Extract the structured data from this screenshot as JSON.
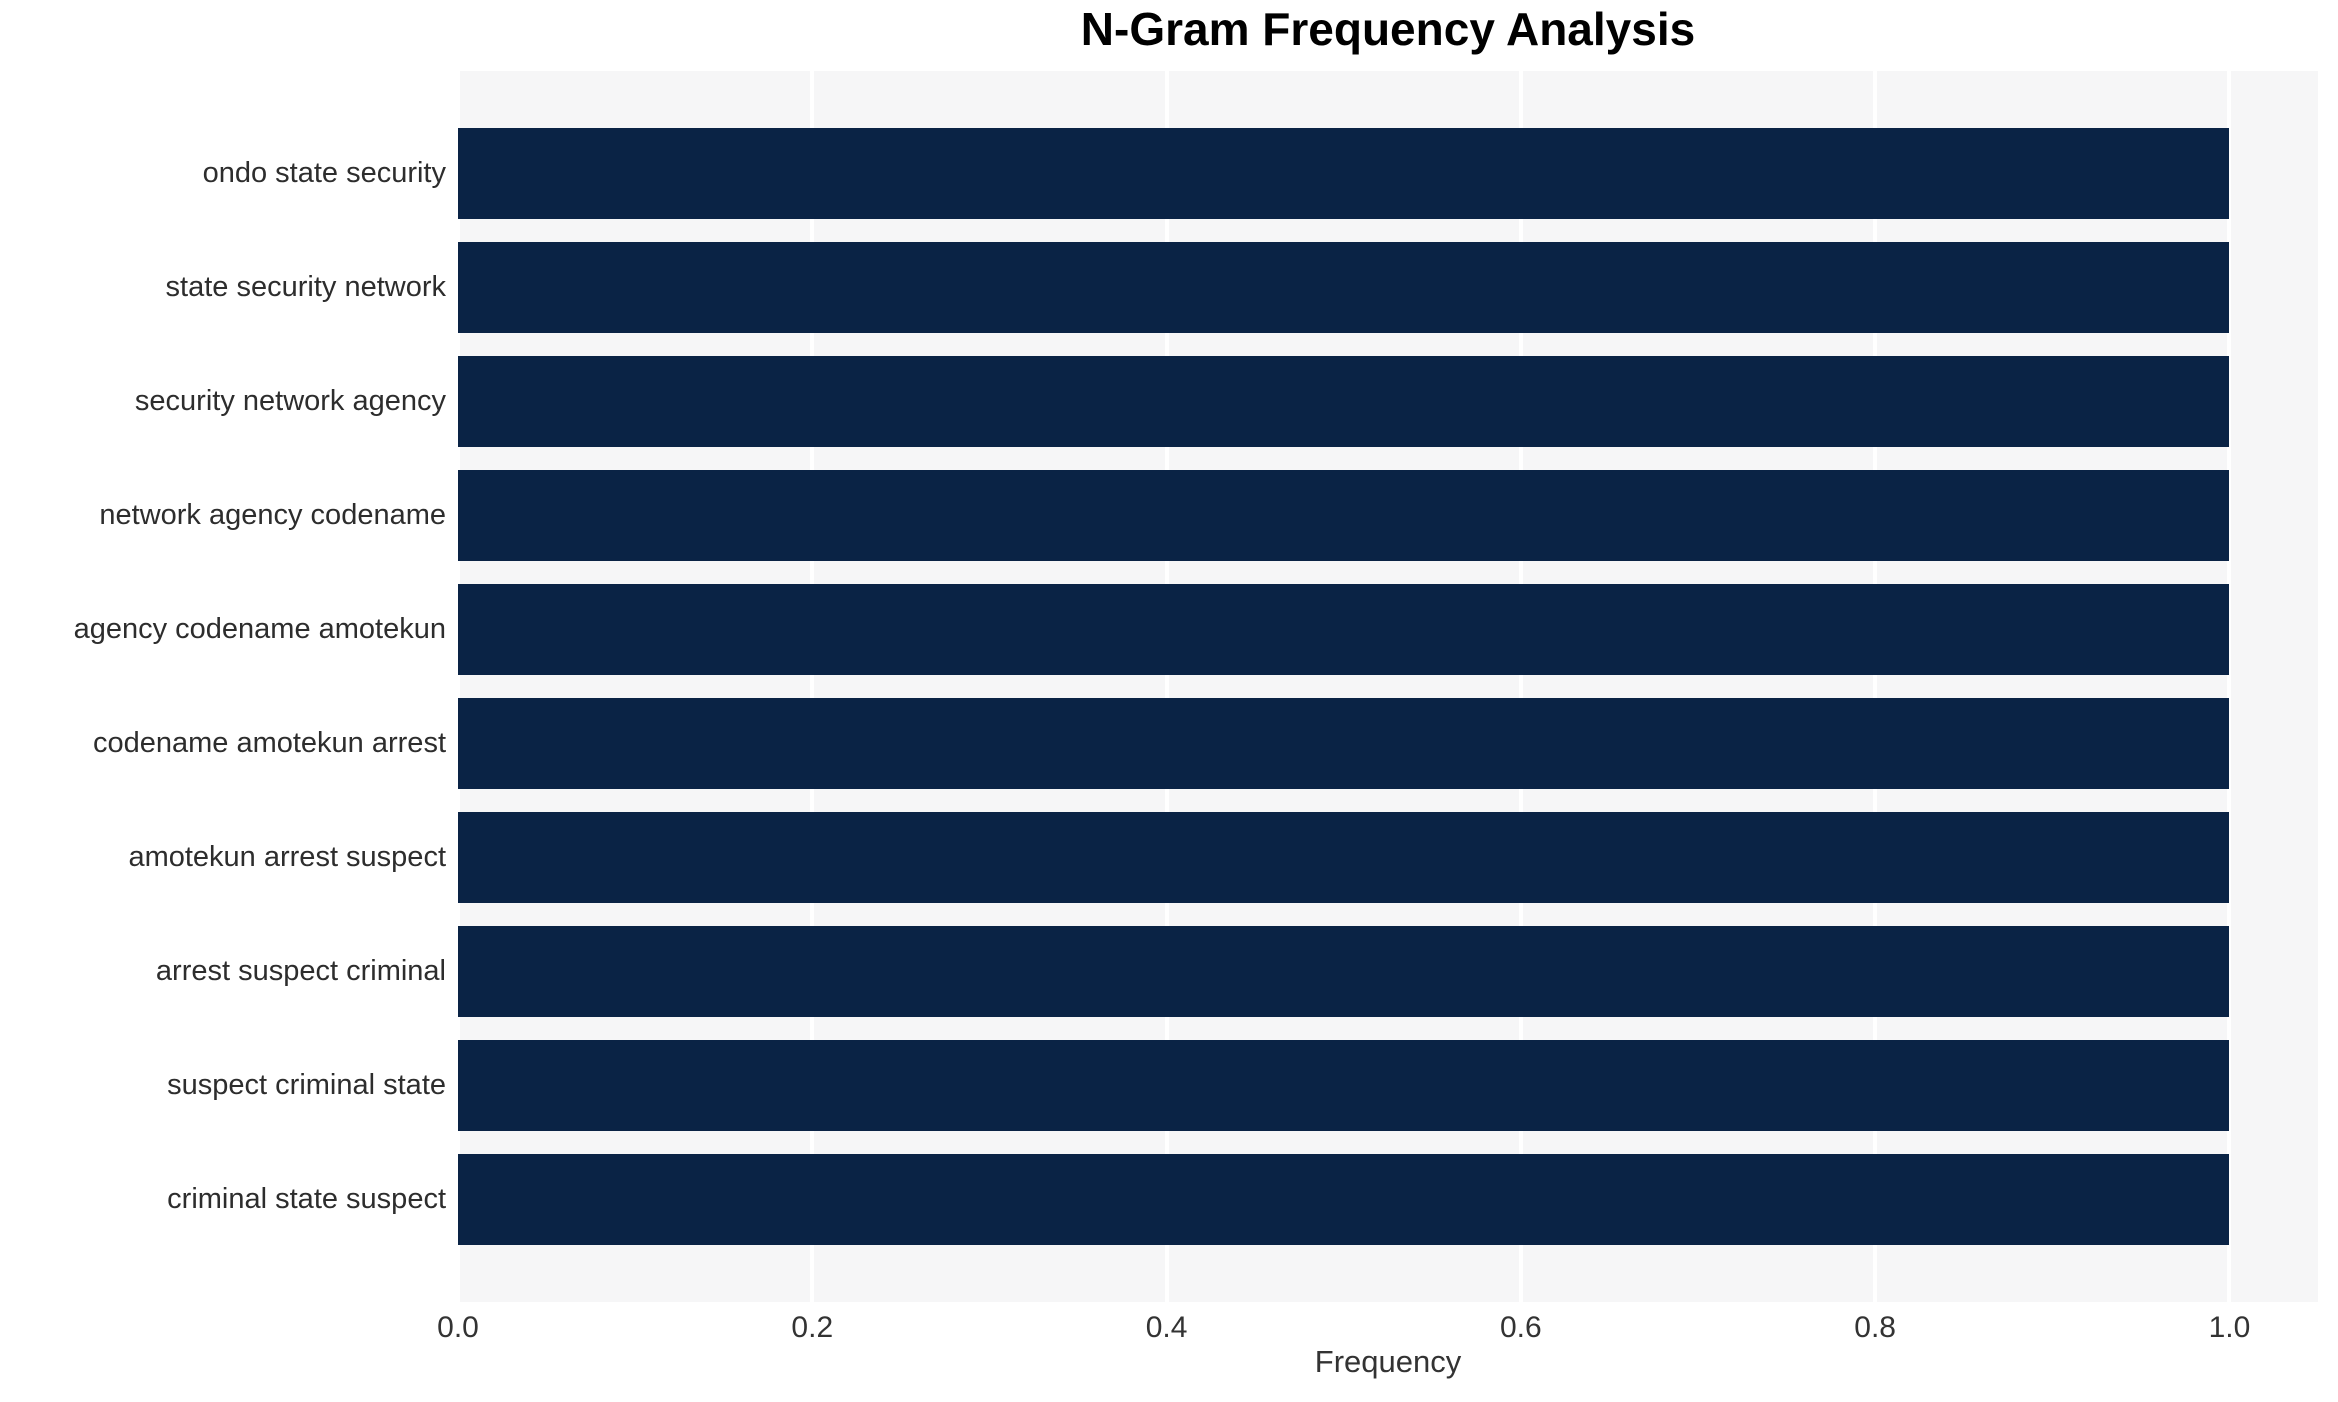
{
  "chart_data": {
    "type": "bar",
    "orientation": "horizontal",
    "title": "N-Gram Frequency Analysis",
    "xlabel": "Frequency",
    "ylabel": "",
    "categories": [
      "ondo state security",
      "state security network",
      "security network agency",
      "network agency codename",
      "agency codename amotekun",
      "codename amotekun arrest",
      "amotekun arrest suspect",
      "arrest suspect criminal",
      "suspect criminal state",
      "criminal state suspect"
    ],
    "values": [
      1.0,
      1.0,
      1.0,
      1.0,
      1.0,
      1.0,
      1.0,
      1.0,
      1.0,
      1.0
    ],
    "x_ticks": [
      0.0,
      0.2,
      0.4,
      0.6,
      0.8,
      1.0
    ],
    "x_tick_labels": [
      "0.0",
      "0.2",
      "0.4",
      "0.6",
      "0.8",
      "1.0"
    ],
    "xlim": [
      0,
      1.05
    ],
    "grid": "vertical",
    "legend": "none",
    "colors": {
      "bar": "#0a2345",
      "plot_background": "#f6f6f7",
      "gridline": "#ffffff",
      "title_text": "#000000",
      "label_text": "#2d2d2d",
      "tick_text": "#333333"
    }
  }
}
